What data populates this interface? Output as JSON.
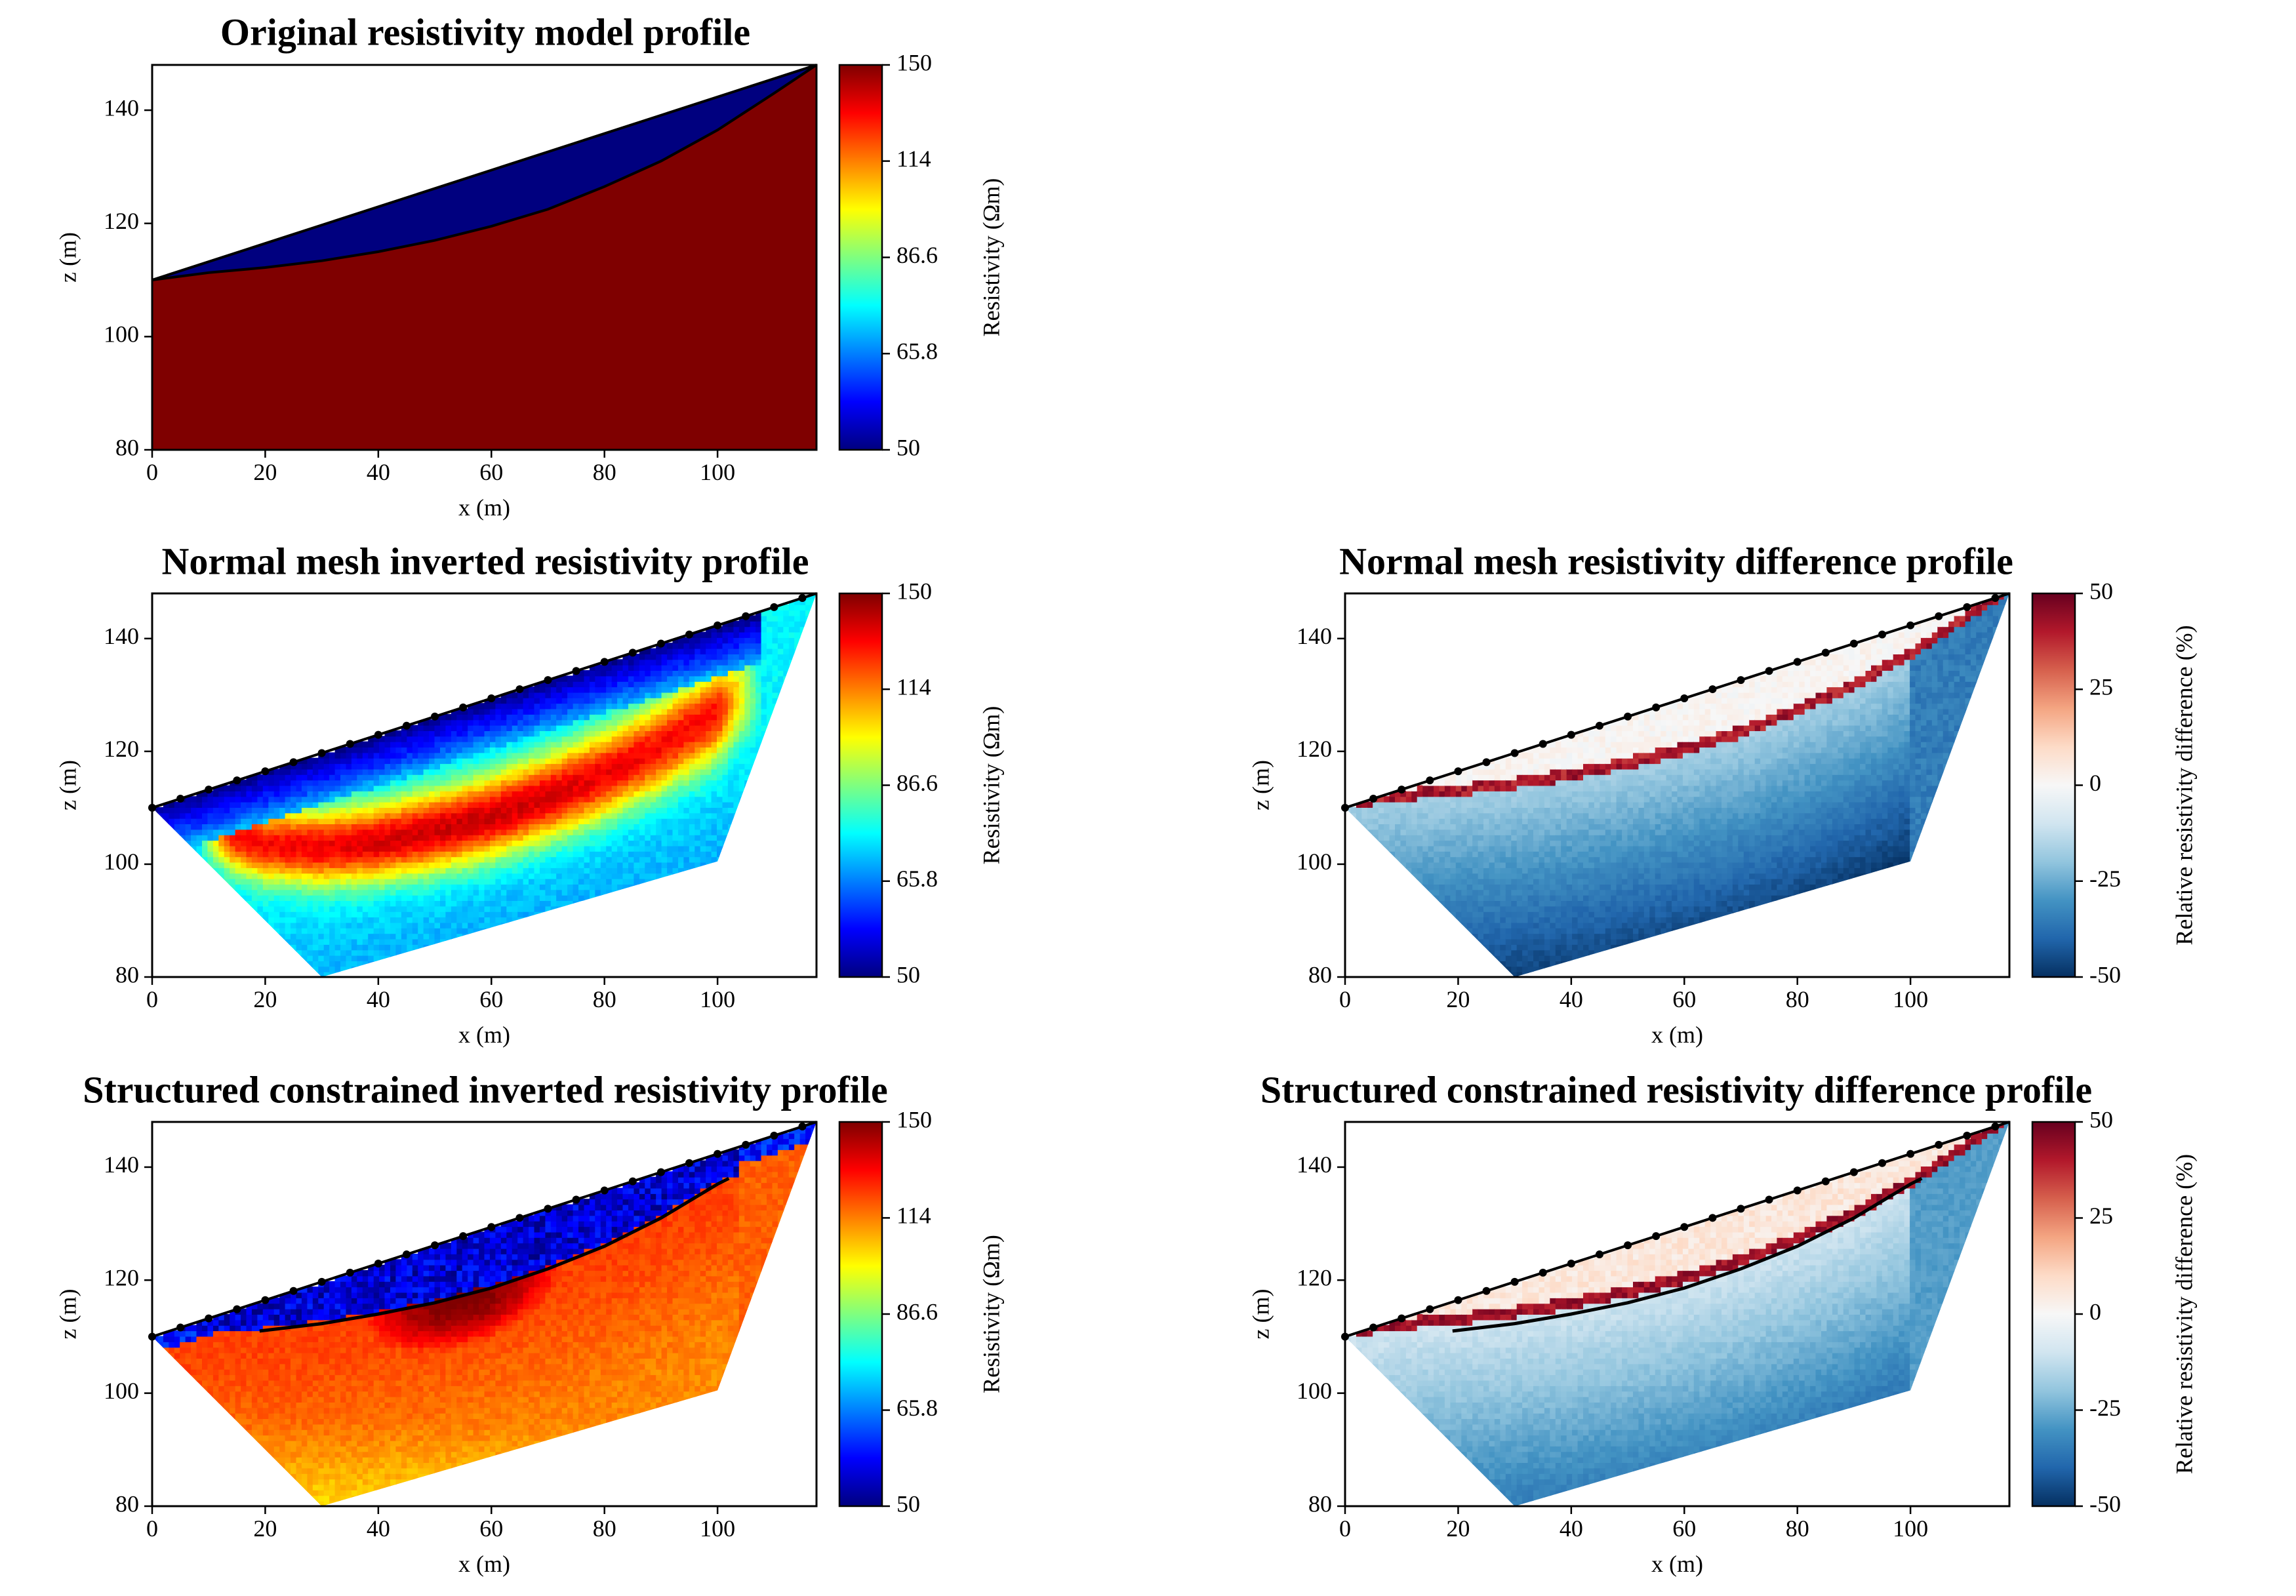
{
  "figure": {
    "colors": {
      "jet": [
        "#00007f",
        "#0000ff",
        "#007fff",
        "#00ffff",
        "#7fff7f",
        "#ffff00",
        "#ff7f00",
        "#ff0000",
        "#7f0000"
      ],
      "rdbu_r": [
        "#053061",
        "#2166ac",
        "#4393c3",
        "#92c5de",
        "#d1e5f0",
        "#f7f7f7",
        "#fddbc7",
        "#f4a582",
        "#d6604d",
        "#b2182b",
        "#67001f"
      ]
    }
  },
  "chart_data": [
    {
      "id": "p1",
      "type": "heatmap",
      "title": "Original resistivity model profile",
      "xlabel": "x (m)",
      "ylabel": "z (m)",
      "xlim": [
        0,
        117.5
      ],
      "ylim": [
        80,
        148
      ],
      "xticks": [
        "0",
        "20",
        "40",
        "60",
        "80",
        "100"
      ],
      "yticks": [
        "80",
        "100",
        "120",
        "140"
      ],
      "surface": [
        [
          0,
          110
        ],
        [
          117.5,
          148
        ]
      ],
      "interface": [
        [
          0,
          110
        ],
        [
          10,
          111.3
        ],
        [
          20,
          112.2
        ],
        [
          30,
          113.4
        ],
        [
          40,
          115
        ],
        [
          50,
          117
        ],
        [
          60,
          119.5
        ],
        [
          70,
          122.5
        ],
        [
          80,
          126.5
        ],
        [
          90,
          131
        ],
        [
          100,
          136.5
        ],
        [
          110,
          143
        ],
        [
          117.5,
          148
        ]
      ],
      "layer_value": 50,
      "background_value": 150,
      "colorbar": {
        "label": "Resistivity (Ωm)",
        "min": 50,
        "max": 150,
        "ticks": [
          "50",
          "65.8",
          "86.6",
          "114",
          "150"
        ],
        "tick_values": [
          50,
          65.8,
          86.6,
          114,
          150
        ],
        "scale": "log",
        "cmap": "jet"
      }
    },
    {
      "id": "p2",
      "type": "heatmap",
      "title": "Normal mesh inverted resistivity profile",
      "xlabel": "x (m)",
      "ylabel": "z (m)",
      "xlim": [
        0,
        117.5
      ],
      "ylim": [
        80,
        148
      ],
      "xticks": [
        "0",
        "20",
        "40",
        "60",
        "80",
        "100"
      ],
      "yticks": [
        "80",
        "100",
        "120",
        "140"
      ],
      "domain": [
        [
          0,
          110
        ],
        [
          117.5,
          148
        ],
        [
          100,
          100.5
        ],
        [
          30,
          80
        ]
      ],
      "electrodes_x": [
        0,
        5,
        10,
        15,
        20,
        25,
        30,
        35,
        40,
        45,
        50,
        55,
        60,
        65,
        70,
        75,
        80,
        85,
        90,
        95,
        100,
        105,
        110,
        115
      ],
      "anomaly_path": [
        [
          12,
          106
        ],
        [
          20,
          103.5
        ],
        [
          30,
          103
        ],
        [
          40,
          104
        ],
        [
          50,
          106
        ],
        [
          60,
          108.5
        ],
        [
          70,
          112
        ],
        [
          80,
          116
        ],
        [
          90,
          121
        ],
        [
          100,
          127
        ],
        [
          105,
          131
        ]
      ],
      "colorbar": {
        "label": "Resistivity (Ωm)",
        "min": 50,
        "max": 150,
        "ticks": [
          "50",
          "65.8",
          "86.6",
          "114",
          "150"
        ],
        "tick_values": [
          50,
          65.8,
          86.6,
          114,
          150
        ],
        "scale": "log",
        "cmap": "jet"
      }
    },
    {
      "id": "p3",
      "type": "heatmap",
      "title": "Normal mesh resistivity difference profile",
      "xlabel": "x (m)",
      "ylabel": "z (m)",
      "xlim": [
        0,
        117.5
      ],
      "ylim": [
        80,
        148
      ],
      "xticks": [
        "0",
        "20",
        "40",
        "60",
        "80",
        "100"
      ],
      "yticks": [
        "80",
        "100",
        "120",
        "140"
      ],
      "domain": [
        [
          0,
          110
        ],
        [
          117.5,
          148
        ],
        [
          100,
          100.5
        ],
        [
          30,
          80
        ]
      ],
      "electrodes_x": [
        0,
        5,
        10,
        15,
        20,
        25,
        30,
        35,
        40,
        45,
        50,
        55,
        60,
        65,
        70,
        75,
        80,
        85,
        90,
        95,
        100,
        105,
        110,
        115
      ],
      "colorbar": {
        "label": "Relative resistivity difference (%)",
        "min": -50,
        "max": 50,
        "ticks": [
          "-50",
          "-25",
          "0",
          "25",
          "50"
        ],
        "tick_values": [
          -50,
          -25,
          0,
          25,
          50
        ],
        "scale": "linear",
        "cmap": "rdbu_r"
      }
    },
    {
      "id": "p4",
      "type": "heatmap",
      "title": "Structured constrained inverted resistivity profile",
      "xlabel": "x (m)",
      "ylabel": "z (m)",
      "xlim": [
        0,
        117.5
      ],
      "ylim": [
        80,
        148
      ],
      "xticks": [
        "0",
        "20",
        "40",
        "60",
        "80",
        "100"
      ],
      "yticks": [
        "80",
        "100",
        "120",
        "140"
      ],
      "domain": [
        [
          0,
          110
        ],
        [
          117.5,
          148
        ],
        [
          100,
          100.5
        ],
        [
          30,
          80
        ]
      ],
      "electrodes_x": [
        0,
        5,
        10,
        15,
        20,
        25,
        30,
        35,
        40,
        45,
        50,
        55,
        60,
        65,
        70,
        75,
        80,
        85,
        90,
        95,
        100,
        105,
        110,
        115
      ],
      "constraint_line": [
        [
          19,
          111
        ],
        [
          30,
          112.3
        ],
        [
          40,
          114
        ],
        [
          50,
          116
        ],
        [
          60,
          118.6
        ],
        [
          70,
          122
        ],
        [
          80,
          126
        ],
        [
          90,
          131
        ],
        [
          100,
          137
        ],
        [
          102,
          138
        ]
      ],
      "colorbar": {
        "label": "Resistivity (Ωm)",
        "min": 50,
        "max": 150,
        "ticks": [
          "50",
          "65.8",
          "86.6",
          "114",
          "150"
        ],
        "tick_values": [
          50,
          65.8,
          86.6,
          114,
          150
        ],
        "scale": "log",
        "cmap": "jet"
      }
    },
    {
      "id": "p5",
      "type": "heatmap",
      "title": "Structured constrained resistivity difference profile",
      "xlabel": "x (m)",
      "ylabel": "z (m)",
      "xlim": [
        0,
        117.5
      ],
      "ylim": [
        80,
        148
      ],
      "xticks": [
        "0",
        "20",
        "40",
        "60",
        "80",
        "100"
      ],
      "yticks": [
        "80",
        "100",
        "120",
        "140"
      ],
      "domain": [
        [
          0,
          110
        ],
        [
          117.5,
          148
        ],
        [
          100,
          100.5
        ],
        [
          30,
          80
        ]
      ],
      "electrodes_x": [
        0,
        5,
        10,
        15,
        20,
        25,
        30,
        35,
        40,
        45,
        50,
        55,
        60,
        65,
        70,
        75,
        80,
        85,
        90,
        95,
        100,
        105,
        110,
        115
      ],
      "constraint_line": [
        [
          19,
          111
        ],
        [
          30,
          112.3
        ],
        [
          40,
          114
        ],
        [
          50,
          116
        ],
        [
          60,
          118.6
        ],
        [
          70,
          122
        ],
        [
          80,
          126
        ],
        [
          90,
          131
        ],
        [
          100,
          137
        ],
        [
          102,
          138
        ]
      ],
      "colorbar": {
        "label": "Relative resistivity difference (%)",
        "min": -50,
        "max": 50,
        "ticks": [
          "-50",
          "-25",
          "0",
          "25",
          "50"
        ],
        "tick_values": [
          -50,
          -25,
          0,
          25,
          50
        ],
        "scale": "linear",
        "cmap": "rdbu_r"
      }
    }
  ]
}
